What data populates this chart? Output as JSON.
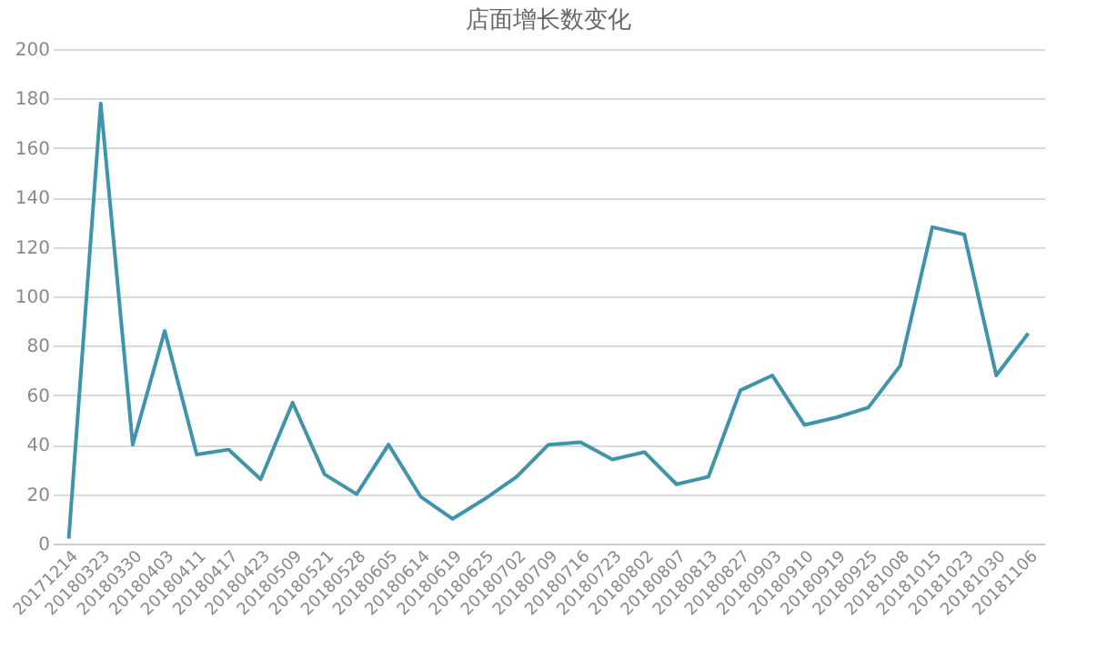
{
  "chart_data": {
    "type": "line",
    "title": "店面增长数变化",
    "categories": [
      "20171214",
      "20180323",
      "20180330",
      "20180403",
      "20180411",
      "20180417",
      "20180423",
      "20180509",
      "20180521",
      "20180528",
      "20180605",
      "20180614",
      "20180619",
      "20180625",
      "20180702",
      "20180709",
      "20180716",
      "20180723",
      "20180802",
      "20180807",
      "20180813",
      "20180827",
      "20180903",
      "20180910",
      "20180919",
      "20180925",
      "20181008",
      "20181015",
      "20181023",
      "20181030",
      "20181106"
    ],
    "series": [
      {
        "color": "#3f93ab",
        "values": [
          2,
          178,
          40,
          86,
          36,
          38,
          26,
          57,
          28,
          20,
          40,
          19,
          10,
          18,
          27,
          40,
          41,
          34,
          37,
          24,
          27,
          62,
          68,
          48,
          51,
          55,
          72,
          128,
          125,
          68,
          85
        ]
      }
    ],
    "ylim": [
      0,
      200
    ],
    "yticks": [
      0,
      20,
      40,
      60,
      80,
      100,
      120,
      140,
      160,
      180,
      200
    ],
    "grid": "y",
    "legend": false,
    "marker": "none",
    "line_style": "solid"
  }
}
